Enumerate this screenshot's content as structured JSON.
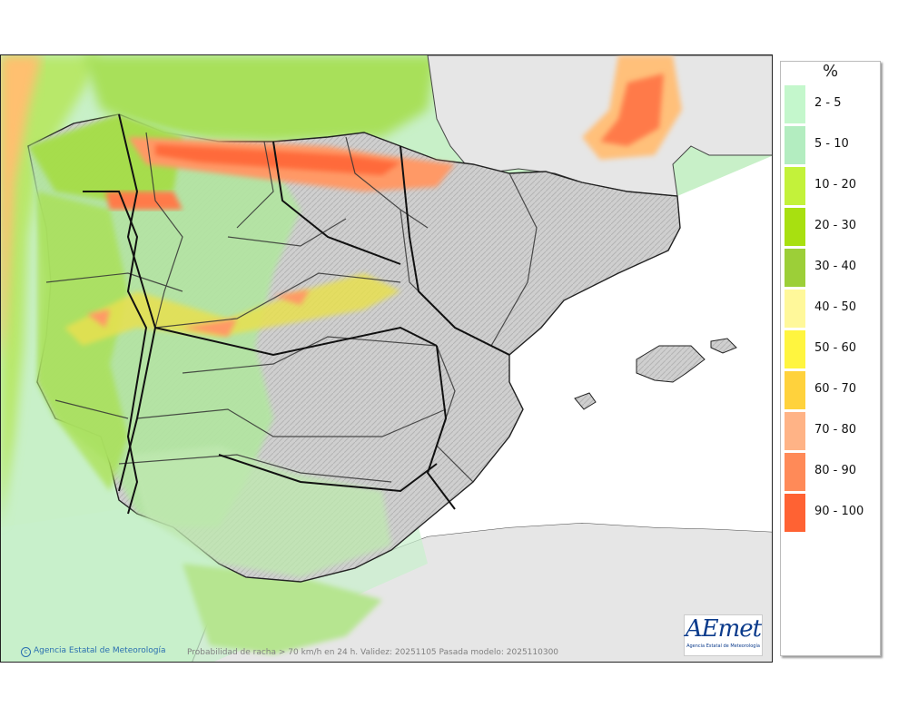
{
  "legend": {
    "unit": "%",
    "items": [
      {
        "label": "2 - 5",
        "color": "#c4f7cc"
      },
      {
        "label": "5 - 10",
        "color": "#b3edc0"
      },
      {
        "label": "10 - 20",
        "color": "#c3f23a"
      },
      {
        "label": "20 - 30",
        "color": "#a8e010"
      },
      {
        "label": "30 - 40",
        "color": "#9ccf38"
      },
      {
        "label": "40 - 50",
        "color": "#fff89a"
      },
      {
        "label": "50 - 60",
        "color": "#fff53f"
      },
      {
        "label": "60 - 70",
        "color": "#ffd23c"
      },
      {
        "label": "70 - 80",
        "color": "#ffb386"
      },
      {
        "label": "80 - 90",
        "color": "#ff8a58"
      },
      {
        "label": "90 - 100",
        "color": "#ff6233"
      }
    ]
  },
  "map": {
    "credit": "Agencia Estatal de Meteorología",
    "caption": "Probabilidad de racha > 70 km/h en 24 h. Validez: 20251105 Pasada modelo: 2025110300",
    "logo_text": "AEmet",
    "logo_subtext": "Agencia Estatal de Meteorología"
  }
}
